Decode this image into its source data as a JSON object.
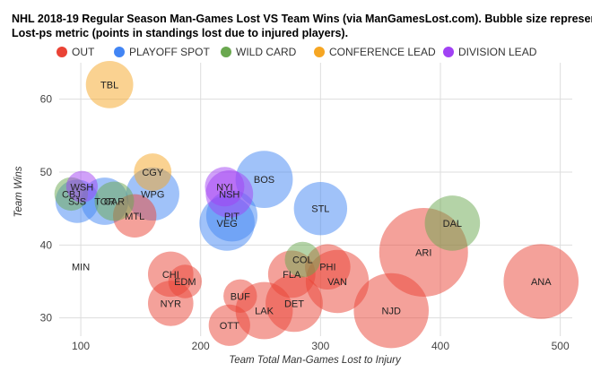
{
  "chart_data": {
    "type": "bubble",
    "title_lines": [
      "NHL 2018-19 Regular Season Man-Games Lost VS Team Wins (via ManGamesLost.com). Bubble size represents",
      "Lost-ps metric (points in standings lost due to injured players)."
    ],
    "xlabel": "Team Total Man-Games Lost to Injury",
    "ylabel": "Team Wins",
    "xlim": [
      82,
      510
    ],
    "ylim": [
      27.5,
      65
    ],
    "xticks": [
      100,
      200,
      300,
      400,
      500
    ],
    "yticks": [
      30,
      40,
      50,
      60
    ],
    "grid": true,
    "legend_position": "top",
    "categories": [
      {
        "key": "OUT",
        "label": "OUT",
        "color": "#ea4335"
      },
      {
        "key": "PLAYOFF",
        "label": "PLAYOFF SPOT",
        "color": "#4285f4"
      },
      {
        "key": "WILD",
        "label": "WILD CARD",
        "color": "#6aa84f"
      },
      {
        "key": "CONF",
        "label": "CONFERENCE LEAD",
        "color": "#f6a623"
      },
      {
        "key": "DIV",
        "label": "DIVISION LEAD",
        "color": "#a142f4"
      }
    ],
    "points": [
      {
        "team": "TBL",
        "x": 124,
        "y": 62,
        "size": 2.4,
        "cat": "CONF"
      },
      {
        "team": "CGY",
        "x": 160,
        "y": 50,
        "size": 1.9,
        "cat": "CONF"
      },
      {
        "team": "WSH",
        "x": 101,
        "y": 48,
        "size": 1.6,
        "cat": "DIV"
      },
      {
        "team": "CBJ",
        "x": 92,
        "y": 47,
        "size": 1.7,
        "cat": "WILD"
      },
      {
        "team": "SJS",
        "x": 97,
        "y": 46,
        "size": 2.2,
        "cat": "PLAYOFF"
      },
      {
        "team": "TOR",
        "x": 120,
        "y": 46,
        "size": 2.4,
        "cat": "PLAYOFF"
      },
      {
        "team": "CAR",
        "x": 128,
        "y": 46,
        "size": 2.0,
        "cat": "WILD"
      },
      {
        "team": "WPG",
        "x": 160,
        "y": 47,
        "size": 2.7,
        "cat": "PLAYOFF"
      },
      {
        "team": "MTL",
        "x": 145,
        "y": 44,
        "size": 2.2,
        "cat": "OUT"
      },
      {
        "team": "NYI",
        "x": 220,
        "y": 48,
        "size": 2.0,
        "cat": "DIV"
      },
      {
        "team": "NSH",
        "x": 224,
        "y": 47,
        "size": 2.4,
        "cat": "DIV"
      },
      {
        "team": "BOS",
        "x": 253,
        "y": 49,
        "size": 2.9,
        "cat": "PLAYOFF"
      },
      {
        "team": "PIT",
        "x": 226,
        "y": 44,
        "size": 2.6,
        "cat": "PLAYOFF"
      },
      {
        "team": "VEG",
        "x": 222,
        "y": 43,
        "size": 2.8,
        "cat": "PLAYOFF"
      },
      {
        "team": "STL",
        "x": 300,
        "y": 45,
        "size": 2.7,
        "cat": "PLAYOFF"
      },
      {
        "team": "DAL",
        "x": 410,
        "y": 43,
        "size": 2.8,
        "cat": "WILD"
      },
      {
        "team": "COL",
        "x": 285,
        "y": 38,
        "size": 1.8,
        "cat": "WILD"
      },
      {
        "team": "ARI",
        "x": 386,
        "y": 39,
        "size": 4.5,
        "cat": "OUT"
      },
      {
        "team": "MIN",
        "x": 100,
        "y": 37,
        "size": 0,
        "cat": "OUT"
      },
      {
        "team": "CHI",
        "x": 175,
        "y": 36,
        "size": 2.3,
        "cat": "OUT"
      },
      {
        "team": "EDM",
        "x": 187,
        "y": 35,
        "size": 1.7,
        "cat": "OUT"
      },
      {
        "team": "PHI",
        "x": 306,
        "y": 37,
        "size": 2.3,
        "cat": "OUT"
      },
      {
        "team": "FLA",
        "x": 276,
        "y": 36,
        "size": 2.4,
        "cat": "OUT"
      },
      {
        "team": "VAN",
        "x": 314,
        "y": 35,
        "size": 3.2,
        "cat": "OUT"
      },
      {
        "team": "ANA",
        "x": 484,
        "y": 35,
        "size": 3.8,
        "cat": "OUT"
      },
      {
        "team": "BUF",
        "x": 233,
        "y": 33,
        "size": 1.7,
        "cat": "OUT"
      },
      {
        "team": "NYR",
        "x": 175,
        "y": 32,
        "size": 2.3,
        "cat": "OUT"
      },
      {
        "team": "DET",
        "x": 278,
        "y": 32,
        "size": 2.9,
        "cat": "OUT"
      },
      {
        "team": "LAK",
        "x": 253,
        "y": 31,
        "size": 2.9,
        "cat": "OUT"
      },
      {
        "team": "NJD",
        "x": 359,
        "y": 31,
        "size": 3.8,
        "cat": "OUT"
      },
      {
        "team": "OTT",
        "x": 224,
        "y": 29,
        "size": 2.1,
        "cat": "OUT"
      }
    ]
  }
}
